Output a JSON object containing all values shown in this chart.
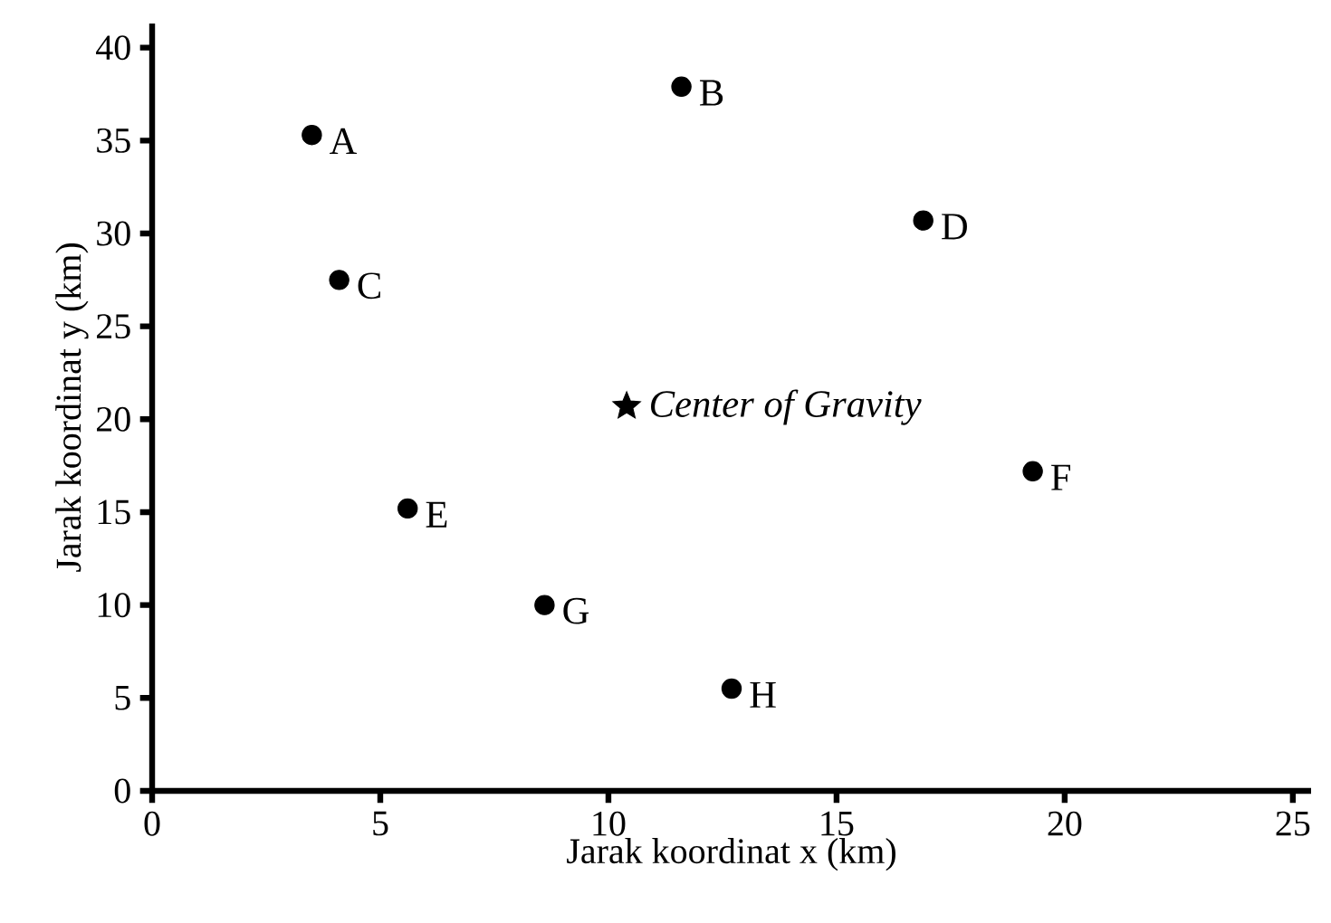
{
  "chart_data": {
    "type": "scatter",
    "xlabel": "Jarak koordinat x (km)",
    "ylabel": "Jarak koordinat y (km)",
    "xlim": [
      0,
      25.4
    ],
    "ylim": [
      0,
      41.3
    ],
    "xticks": [
      0,
      5,
      10,
      15,
      20,
      25
    ],
    "yticks": [
      0,
      5,
      10,
      15,
      20,
      25,
      30,
      35,
      40
    ],
    "series": [
      {
        "marker": "circle",
        "color": "#000000",
        "x": [
          3.5,
          11.6,
          4.1,
          16.9,
          5.6,
          19.3,
          8.6,
          12.7
        ],
        "values": [
          35.3,
          37.9,
          27.5,
          30.7,
          15.2,
          17.2,
          10.0,
          5.5
        ]
      },
      {
        "marker": "star",
        "color": "#000000",
        "x": [
          10.4
        ],
        "values": [
          20.7
        ]
      }
    ],
    "annotations": [
      {
        "text": "A",
        "x": 3.5,
        "y": 35.3
      },
      {
        "text": "B",
        "x": 11.6,
        "y": 37.9
      },
      {
        "text": "C",
        "x": 4.1,
        "y": 27.5
      },
      {
        "text": "D",
        "x": 16.9,
        "y": 30.7
      },
      {
        "text": "E",
        "x": 5.6,
        "y": 15.2
      },
      {
        "text": "F",
        "x": 19.3,
        "y": 17.2
      },
      {
        "text": "G",
        "x": 8.6,
        "y": 10.0
      },
      {
        "text": "H",
        "x": 12.7,
        "y": 5.5
      },
      {
        "text": "Center of Gravity",
        "x": 10.4,
        "y": 20.7
      }
    ]
  }
}
